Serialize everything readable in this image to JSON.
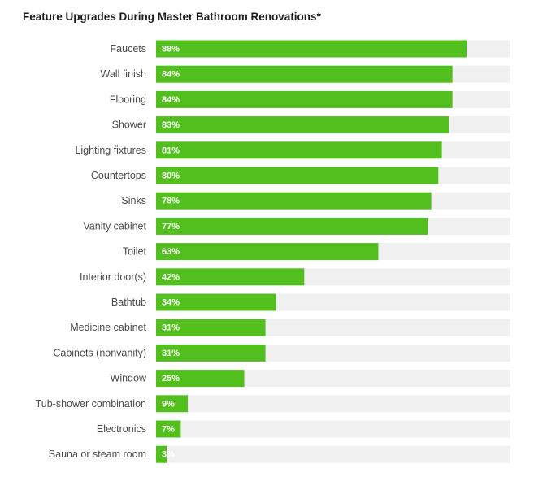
{
  "chart_data": {
    "type": "bar",
    "orientation": "horizontal",
    "title": "Feature Upgrades During Master Bathroom Renovations*",
    "categories": [
      "Faucets",
      "Wall finish",
      "Flooring",
      "Shower",
      "Lighting fixtures",
      "Countertops",
      "Sinks",
      "Vanity cabinet",
      "Toilet",
      "Interior door(s)",
      "Bathtub",
      "Medicine cabinet",
      "Cabinets (nonvanity)",
      "Window",
      "Tub-shower combination",
      "Electronics",
      "Sauna or steam room"
    ],
    "values": [
      88,
      84,
      84,
      83,
      81,
      80,
      78,
      77,
      63,
      42,
      34,
      31,
      31,
      25,
      9,
      7,
      3
    ],
    "value_labels": [
      "88%",
      "84%",
      "84%",
      "83%",
      "81%",
      "80%",
      "78%",
      "77%",
      "63%",
      "42%",
      "34%",
      "31%",
      "31%",
      "25%",
      "9%",
      "7%",
      "3%"
    ],
    "xlim": [
      0,
      100
    ],
    "grid": false,
    "colors": {
      "bar": "#52bf1e",
      "track": "#f0f0f0"
    }
  }
}
